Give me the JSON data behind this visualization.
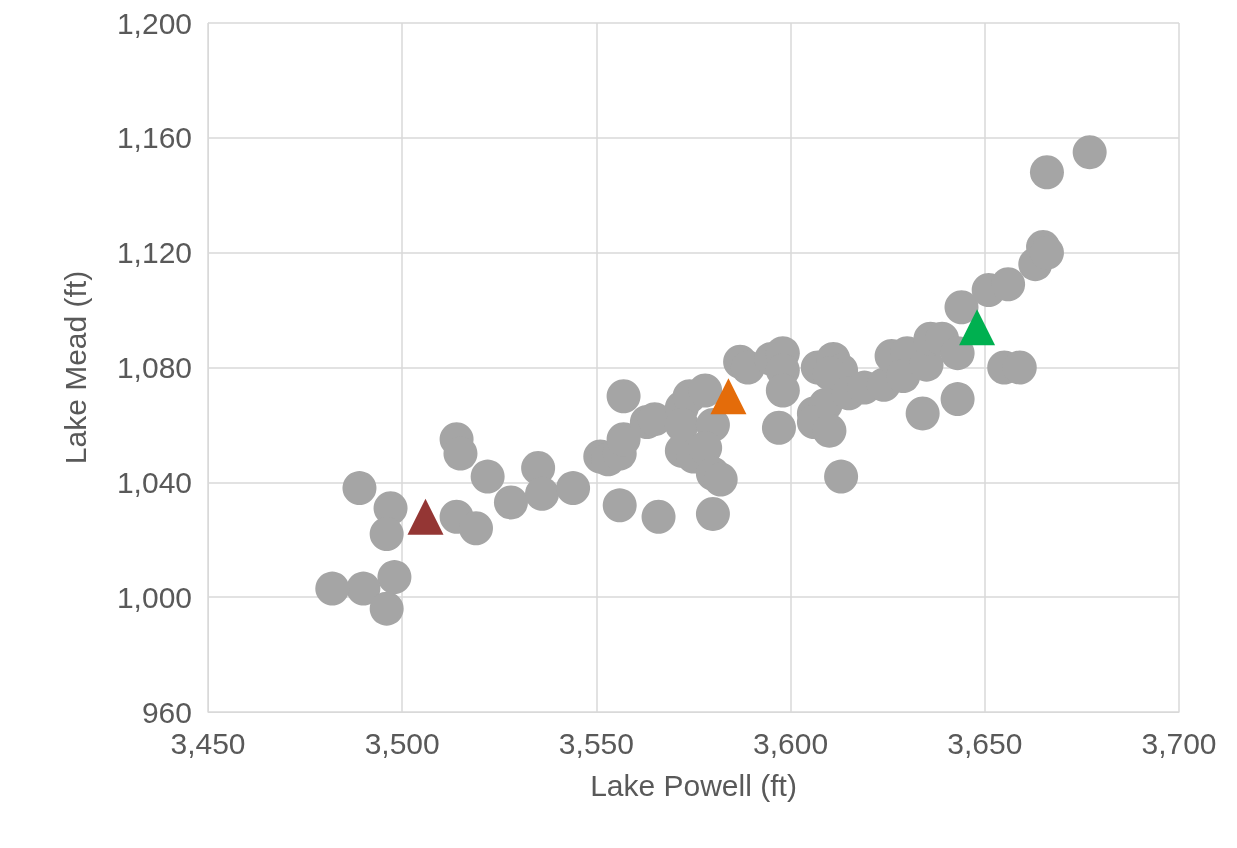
{
  "chart_data": {
    "type": "scatter",
    "xlabel": "Lake Powell (ft)",
    "ylabel": "Lake Mead (ft)",
    "xlim": [
      3450,
      3700
    ],
    "xticks": [
      {
        "value": 3450,
        "label": "3,450"
      },
      {
        "value": 3500,
        "label": "3,500"
      },
      {
        "value": 3550,
        "label": "3,550"
      },
      {
        "value": 3600,
        "label": "3,600"
      },
      {
        "value": 3650,
        "label": "3,650"
      },
      {
        "value": 3700,
        "label": "3,700"
      }
    ],
    "ylim": [
      960,
      1200
    ],
    "yticks": [
      960,
      {
        "value": 1000,
        "label": "1,000"
      },
      {
        "value": 1040,
        "label": "1,040"
      },
      {
        "value": 1080,
        "label": "1,080"
      },
      {
        "value": 1120,
        "label": "1,120"
      },
      {
        "value": 1160,
        "label": "1,160"
      },
      {
        "value": 1200,
        "label": "1,200"
      }
    ],
    "grid": true,
    "marker": "circle",
    "series": [
      {
        "color": "#a5a5a5",
        "x": [
          3489,
          3497,
          3496,
          3498,
          3490,
          3482,
          3496,
          3506,
          3514,
          3515,
          3514,
          3519,
          3522,
          3528,
          3535,
          3536,
          3544,
          3551,
          3553,
          3556,
          3557,
          3557,
          3556,
          3563,
          3565,
          3566,
          3572,
          3574,
          3578,
          3572,
          3580,
          3572,
          3575,
          3578,
          3580,
          3582,
          3580,
          3583,
          3587,
          3589,
          3595,
          3598,
          3598,
          3598,
          3597,
          3607,
          3611,
          3613,
          3610,
          3606,
          3609,
          3606,
          3610,
          3615,
          3619,
          3624,
          3626,
          3630,
          3629,
          3635,
          3636,
          3639,
          3643,
          3634,
          3643,
          3613,
          3644,
          3648,
          3651,
          3656,
          3655,
          3659,
          3663,
          3665,
          3666,
          3666,
          3677
        ],
        "values": [
          1038,
          1031,
          1022,
          1007,
          1003,
          1003,
          996,
          null,
          1055,
          1050,
          1028,
          1024,
          1042,
          1033,
          1045,
          1036,
          1038,
          1049,
          1048,
          1050,
          1055,
          1070,
          1032,
          1061,
          1062,
          1028,
          1066,
          1070,
          1072,
          1060,
          1060,
          1051,
          1049,
          1052,
          1043,
          1041,
          1029,
          null,
          1082,
          1080,
          1083,
          1085,
          1079,
          1072,
          1059,
          1080,
          1083,
          1079,
          1078,
          1064,
          1067,
          1061,
          1058,
          1071,
          1073,
          1074,
          1084,
          1085,
          1077,
          1081,
          1090,
          1090,
          1085,
          1064,
          1069,
          1042,
          1101,
          null,
          1107,
          1109,
          1080,
          1080,
          1116,
          1122,
          1120,
          1148,
          1155
        ]
      },
      {
        "color": "#943634",
        "marker": "triangle",
        "x": [
          3506
        ],
        "values": [
          1028
        ]
      },
      {
        "color": "#e46c0a",
        "marker": "triangle",
        "x": [
          3584
        ],
        "values": [
          1070
        ]
      },
      {
        "color": "#00b050",
        "marker": "triangle",
        "x": [
          3648
        ],
        "values": [
          1094
        ]
      }
    ]
  }
}
